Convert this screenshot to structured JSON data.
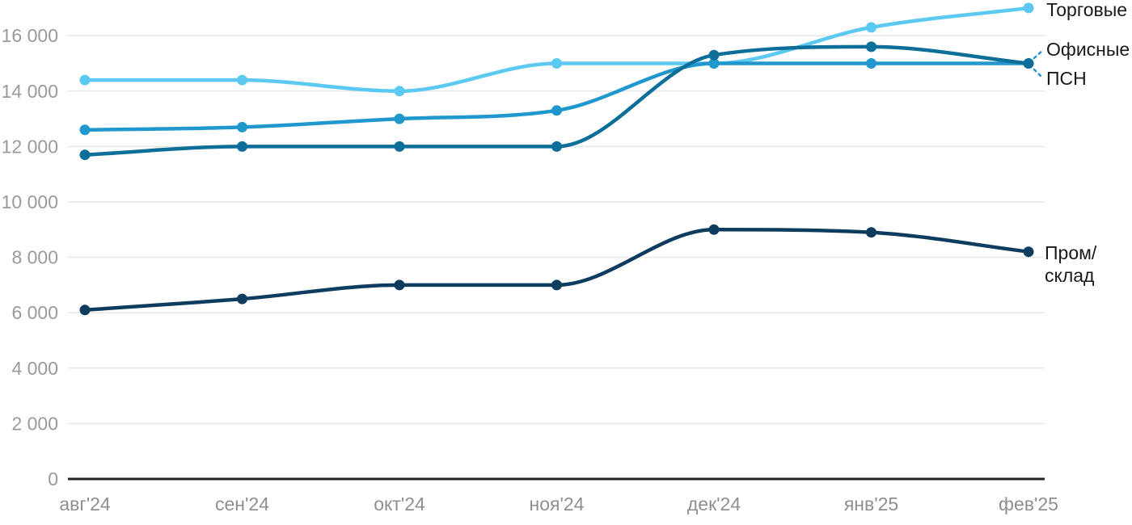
{
  "chart_data": {
    "type": "line",
    "title": "",
    "xlabel": "",
    "ylabel": "",
    "grid": true,
    "legend_position": "right",
    "categories": [
      "авг'24",
      "сен'24",
      "окт'24",
      "ноя'24",
      "дек'24",
      "янв'25",
      "фев'25"
    ],
    "series": [
      {
        "name": "Торговые",
        "color": "#5BC9F2",
        "values": [
          14400,
          14400,
          14000,
          15000,
          15000,
          16300,
          17000
        ]
      },
      {
        "name": "Офисные",
        "color": "#0D6E99",
        "values": [
          11700,
          12000,
          12000,
          12000,
          15300,
          15600,
          15000
        ]
      },
      {
        "name": "ПСН",
        "color": "#2098CE",
        "values": [
          12600,
          12700,
          13000,
          13300,
          15000,
          15000,
          15000
        ]
      },
      {
        "name": "Пром/склад",
        "color": "#0D3C5E",
        "values": [
          6100,
          6500,
          7000,
          7000,
          9000,
          8900,
          8200
        ],
        "legend_lines": [
          "Пром/",
          "склад"
        ]
      }
    ],
    "yticks": {
      "values": [
        0,
        2000,
        4000,
        6000,
        8000,
        10000,
        12000,
        14000,
        16000
      ],
      "labels": [
        "0",
        "2 000",
        "4 000",
        "6 000",
        "8 000",
        "10 000",
        "12 000",
        "14 000",
        "16 000"
      ]
    },
    "ylim": [
      0,
      17000
    ],
    "colors": {
      "background": "#FFFFFF",
      "grid": "#E8E8E8",
      "axis_line": "#222222",
      "y_tick_label": "#9A9A9A",
      "x_tick_label": "#8F8F8F",
      "legend_text": "#1A1A1A",
      "leader": "#2098CE"
    }
  }
}
